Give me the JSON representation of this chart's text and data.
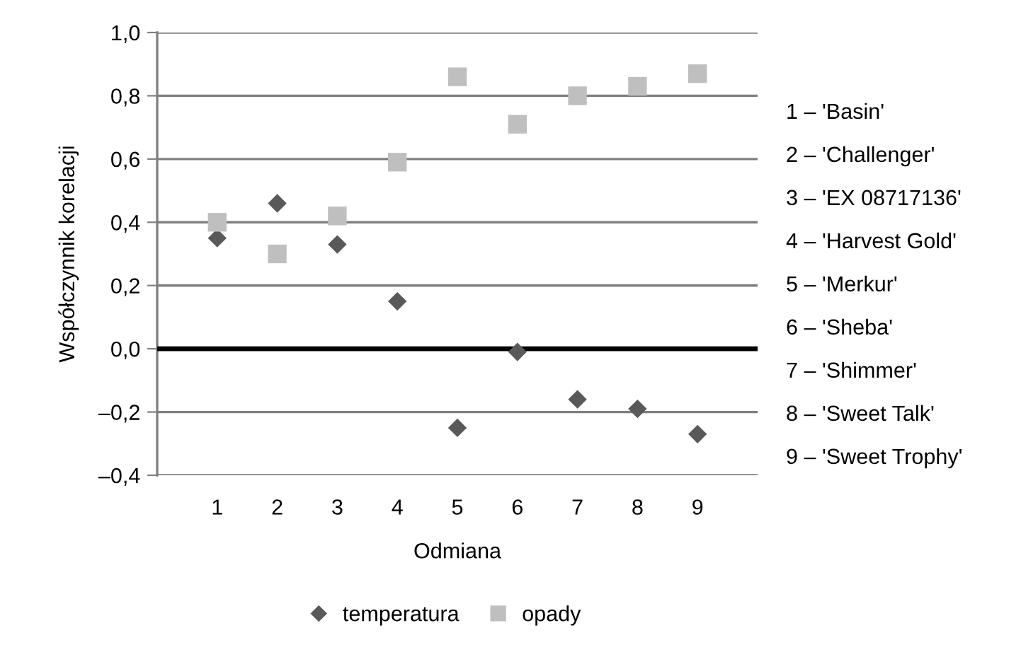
{
  "chart_data": {
    "type": "scatter",
    "xlabel": "Odmiana",
    "ylabel": "Współczynnik korelacji",
    "x": [
      1,
      2,
      3,
      4,
      5,
      6,
      7,
      8,
      9
    ],
    "xlim": [
      0,
      10
    ],
    "xticks": [
      1,
      2,
      3,
      4,
      5,
      6,
      7,
      8,
      9
    ],
    "ylim": [
      -0.4,
      1.0
    ],
    "yticks": [
      {
        "value": -0.4,
        "label": "–0,4"
      },
      {
        "value": -0.2,
        "label": "–0,2"
      },
      {
        "value": 0.0,
        "label": "0,0"
      },
      {
        "value": 0.2,
        "label": "0,2"
      },
      {
        "value": 0.4,
        "label": "0,4"
      },
      {
        "value": 0.6,
        "label": "0,6"
      },
      {
        "value": 0.8,
        "label": "0,8"
      },
      {
        "value": 1.0,
        "label": "1,0"
      }
    ],
    "grid": "y",
    "legend": "bottom",
    "ref_lines": [
      {
        "axis": "y",
        "value": 0,
        "label": null,
        "color": "#000000"
      }
    ],
    "series": [
      {
        "name": "temperatura",
        "color": "#595959",
        "marker": "diamond",
        "values": [
          0.35,
          0.46,
          0.33,
          0.15,
          -0.25,
          -0.01,
          -0.16,
          -0.19,
          -0.27
        ]
      },
      {
        "name": "opady",
        "color": "#bfbfbf",
        "marker": "square",
        "values": [
          0.4,
          0.3,
          0.42,
          0.59,
          0.86,
          0.71,
          0.8,
          0.83,
          0.87
        ]
      }
    ],
    "annotations": [
      "1 – 'Basin'",
      "2 – 'Challenger'",
      "3 – 'EX 08717136'",
      "4 – 'Harvest Gold'",
      "5 – 'Merkur'",
      "6 – 'Sheba'",
      "7 – 'Shimmer'",
      "8 – 'Sweet Talk'",
      "9 – 'Sweet Trophy'"
    ]
  }
}
